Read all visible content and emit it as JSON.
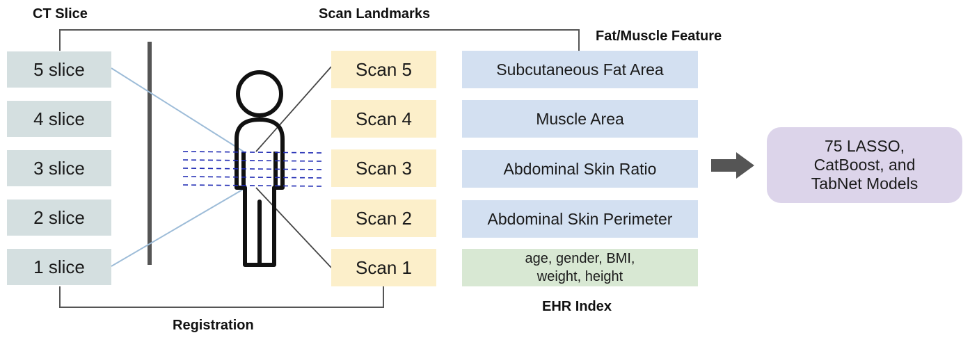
{
  "labels": {
    "ct_slice": "CT Slice",
    "scan_landmarks": "Scan Landmarks",
    "fat_muscle_feature": "Fat/Muscle Feature",
    "ehr_index": "EHR Index",
    "registration": "Registration"
  },
  "slices": [
    "5 slice",
    "4 slice",
    "3 slice",
    "2 slice",
    "1 slice"
  ],
  "scans": [
    "Scan 5",
    "Scan 4",
    "Scan 3",
    "Scan 2",
    "Scan 1"
  ],
  "features": [
    "Subcutaneous Fat Area",
    "Muscle Area",
    "Abdominal Skin Ratio",
    "Abdominal Skin Perimeter"
  ],
  "ehr": {
    "line1": "age, gender, BMI,",
    "line2": "weight, height"
  },
  "model": {
    "line1": "75 LASSO,",
    "line2": "CatBoost, and",
    "line3": "TabNet Models"
  },
  "colors": {
    "slice_box": "#d4dfe0",
    "scan_box": "#fcefca",
    "feature_box": "#d3e0f1",
    "ehr_box": "#d8e8d3",
    "model_box": "#dcd4ea",
    "scan_lines": "#1f2ab3",
    "projection_lines": "#9dbcd8"
  }
}
